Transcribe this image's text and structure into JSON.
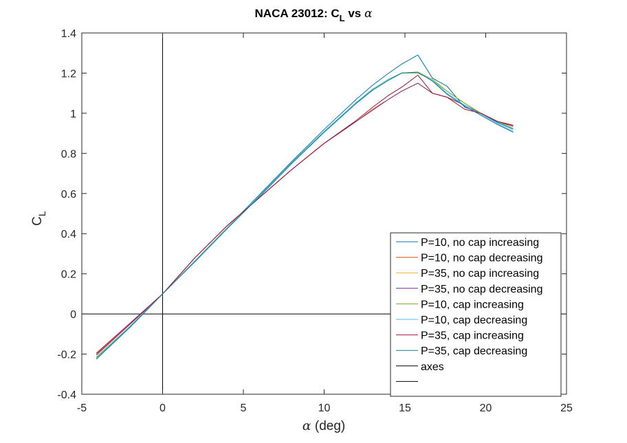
{
  "chart_data": {
    "type": "line",
    "title": {
      "prefix": "NACA 23012: C",
      "sub": "L",
      "suffix": " vs ",
      "greek": "α"
    },
    "xlabel": {
      "greek": "α",
      "text": " (deg)"
    },
    "ylabel": {
      "main": "C",
      "sub": "L"
    },
    "xlim": [
      -5,
      25
    ],
    "ylim": [
      -0.4,
      1.4
    ],
    "xticks": [
      "-5",
      "0",
      "5",
      "10",
      "15",
      "20",
      "25"
    ],
    "xtick_values": [
      -5,
      0,
      5,
      10,
      15,
      20,
      25
    ],
    "yticks": [
      "-0.4",
      "-0.2",
      "0",
      "0.2",
      "0.4",
      "0.6",
      "0.8",
      "1",
      "1.2",
      "1.4"
    ],
    "ytick_values": [
      -0.4,
      -0.2,
      0,
      0.2,
      0.4,
      0.6,
      0.8,
      1,
      1.2,
      1.4
    ],
    "grid": false,
    "legend_position": "bottom-right",
    "series": [
      {
        "name": "P=10, no cap increasing",
        "color": "#0072BD",
        "x": [
          -4.1,
          -2,
          0,
          2,
          4,
          6,
          8,
          10,
          12,
          13,
          14,
          14.8,
          15.8,
          16.7,
          17.6,
          18.7,
          19.7,
          20.7,
          21.7
        ],
        "y": [
          -0.22,
          -0.065,
          0.1,
          0.265,
          0.43,
          0.595,
          0.76,
          0.92,
          1.07,
          1.14,
          1.2,
          1.245,
          1.29,
          1.175,
          1.135,
          1.03,
          1.0,
          0.955,
          0.92
        ]
      },
      {
        "name": "P=10, no cap decreasing",
        "color": "#D95319",
        "x": [
          21.7,
          20.7,
          19.7,
          18.7,
          17.6,
          16.7,
          15.8,
          14.8,
          14,
          13,
          12,
          10,
          8,
          6,
          4,
          2,
          0,
          -2,
          -4.1
        ],
        "y": [
          0.935,
          0.96,
          1.0,
          1.04,
          1.08,
          1.1,
          1.15,
          1.11,
          1.07,
          1.02,
          0.96,
          0.85,
          0.72,
          0.58,
          0.44,
          0.28,
          0.1,
          -0.05,
          -0.2
        ]
      },
      {
        "name": "P=35, no cap increasing",
        "color": "#EDB120",
        "x": [
          -4.1,
          -2,
          0,
          2,
          4,
          6,
          8,
          10,
          12,
          13,
          14,
          14.8,
          15.8,
          16.7,
          17.6,
          18.7,
          19.7,
          20.7,
          21.7
        ],
        "y": [
          -0.215,
          -0.06,
          0.1,
          0.265,
          0.43,
          0.59,
          0.755,
          0.91,
          1.055,
          1.12,
          1.17,
          1.2,
          1.205,
          1.17,
          1.11,
          1.05,
          1.0,
          0.96,
          0.925
        ]
      },
      {
        "name": "P=35, no cap decreasing",
        "color": "#7E2F8E",
        "x": [
          21.7,
          20.7,
          19.7,
          18.7,
          17.6,
          16.7,
          15.8,
          14.8,
          14,
          13,
          12,
          10,
          8,
          6,
          4,
          2,
          0,
          -2,
          -4.1
        ],
        "y": [
          0.935,
          0.96,
          1.0,
          1.04,
          1.08,
          1.1,
          1.15,
          1.11,
          1.07,
          1.015,
          0.96,
          0.85,
          0.72,
          0.58,
          0.44,
          0.28,
          0.1,
          -0.05,
          -0.205
        ]
      },
      {
        "name": "P=10, cap increasing",
        "color": "#77AC30",
        "x": [
          -4.1,
          -2,
          0,
          2,
          4,
          6,
          8,
          10,
          12,
          13,
          14,
          14.8,
          15.8,
          16.7,
          17.6,
          18.7,
          19.7,
          20.7,
          21.7
        ],
        "y": [
          -0.215,
          -0.06,
          0.1,
          0.265,
          0.43,
          0.59,
          0.755,
          0.91,
          1.055,
          1.12,
          1.17,
          1.2,
          1.2,
          1.165,
          1.11,
          1.05,
          1.0,
          0.96,
          0.925
        ]
      },
      {
        "name": "P=10, cap decreasing",
        "color": "#4DBEEE",
        "x": [
          21.7,
          20.7,
          19.7,
          18.7,
          17.6,
          16.7,
          15.8,
          14.8,
          14,
          13,
          12,
          10,
          8,
          6,
          4,
          2,
          0,
          -2,
          -4.1
        ],
        "y": [
          0.91,
          0.95,
          0.995,
          1.04,
          1.1,
          1.165,
          1.205,
          1.2,
          1.17,
          1.12,
          1.055,
          0.91,
          0.755,
          0.59,
          0.43,
          0.265,
          0.1,
          -0.06,
          -0.22
        ]
      },
      {
        "name": "P=35, cap increasing",
        "color": "#A2142F",
        "x": [
          -4.1,
          -2,
          0,
          2,
          4,
          6,
          8,
          10,
          12,
          13,
          14,
          14.8,
          15.8,
          16.7,
          17.6,
          18.7,
          19.7,
          20.7,
          21.7
        ],
        "y": [
          -0.195,
          -0.045,
          0.1,
          0.28,
          0.44,
          0.58,
          0.72,
          0.85,
          0.965,
          1.03,
          1.09,
          1.13,
          1.19,
          1.1,
          1.08,
          1.02,
          1.0,
          0.96,
          0.94
        ]
      },
      {
        "name": "P=35, cap decreasing",
        "color": "#0E7C8C",
        "x": [
          21.7,
          20.7,
          19.7,
          18.7,
          17.6,
          16.7,
          15.8,
          14.8,
          14,
          13,
          12,
          10,
          8,
          6,
          4,
          2,
          0,
          -2,
          -4.1
        ],
        "y": [
          0.905,
          0.945,
          0.99,
          1.035,
          1.095,
          1.16,
          1.205,
          1.2,
          1.165,
          1.115,
          1.05,
          0.905,
          0.75,
          0.585,
          0.425,
          0.26,
          0.1,
          -0.065,
          -0.225
        ]
      }
    ],
    "reference_lines": [
      {
        "name": "axes",
        "color": "#000000",
        "orientation": "vertical",
        "value": 0
      },
      {
        "name": "",
        "color": "#000000",
        "orientation": "horizontal",
        "value": 0
      }
    ]
  }
}
